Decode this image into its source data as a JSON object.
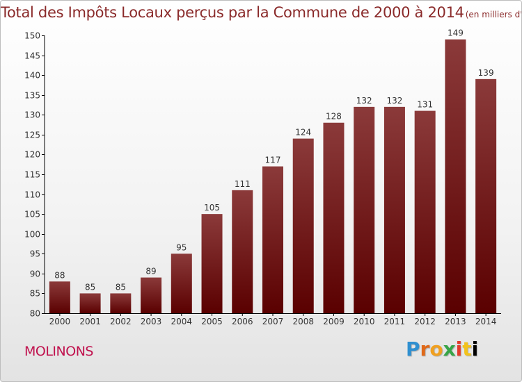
{
  "title": {
    "main": "Total des Impôts Locaux perçus par la Commune de 2000 à 2014",
    "unit": "(en milliers d'€)"
  },
  "commune": "MOLINONS",
  "brand": {
    "letters": [
      "P",
      "r",
      "o",
      "x",
      "i",
      "t",
      "i"
    ]
  },
  "colors": {
    "title": "#8a2a2a",
    "bar_top": "#8b3a3a",
    "bar_bottom": "#5a0000",
    "commune": "#c0124e"
  },
  "chart_data": {
    "type": "bar",
    "title": "Total des Impôts Locaux perçus par la Commune de 2000 à 2014",
    "xlabel": "",
    "ylabel": "",
    "ylim": [
      80,
      150
    ],
    "yticks": [
      80,
      85,
      90,
      95,
      100,
      105,
      110,
      115,
      120,
      125,
      130,
      135,
      140,
      145,
      150
    ],
    "categories": [
      "2000",
      "2001",
      "2002",
      "2003",
      "2004",
      "2005",
      "2006",
      "2007",
      "2008",
      "2009",
      "2010",
      "2011",
      "2012",
      "2013",
      "2014"
    ],
    "values": [
      88,
      85,
      85,
      89,
      95,
      105,
      111,
      117,
      124,
      128,
      132,
      132,
      131,
      149,
      139
    ],
    "grid": false
  }
}
